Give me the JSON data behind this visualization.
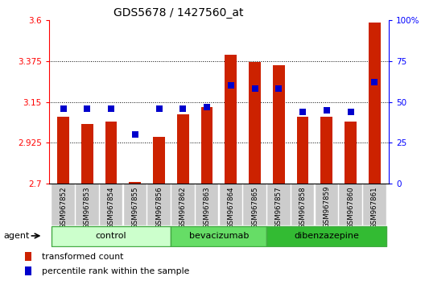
{
  "title": "GDS5678 / 1427560_at",
  "samples": [
    "GSM967852",
    "GSM967853",
    "GSM967854",
    "GSM967855",
    "GSM967856",
    "GSM967862",
    "GSM967863",
    "GSM967864",
    "GSM967865",
    "GSM967857",
    "GSM967858",
    "GSM967859",
    "GSM967860",
    "GSM967861"
  ],
  "bar_values": [
    3.07,
    3.03,
    3.04,
    2.71,
    2.96,
    3.08,
    3.12,
    3.41,
    3.37,
    3.35,
    3.07,
    3.07,
    3.04,
    3.585
  ],
  "dot_values_pct": [
    46,
    46,
    46,
    30,
    46,
    46,
    47,
    60,
    58,
    58,
    44,
    45,
    44,
    62
  ],
  "ylim_left": [
    2.7,
    3.6
  ],
  "ylim_right": [
    0,
    100
  ],
  "yticks_left": [
    2.7,
    2.925,
    3.15,
    3.375,
    3.6
  ],
  "yticks_right": [
    0,
    25,
    50,
    75,
    100
  ],
  "ytick_labels_left": [
    "2.7",
    "2.925",
    "3.15",
    "3.375",
    "3.6"
  ],
  "ytick_labels_right": [
    "0",
    "25",
    "50",
    "75",
    "100%"
  ],
  "groups": [
    {
      "name": "control",
      "color": "#ccffcc",
      "edge": "#44aa44",
      "indices": [
        0,
        1,
        2,
        3,
        4
      ]
    },
    {
      "name": "bevacizumab",
      "color": "#66dd66",
      "edge": "#44aa44",
      "indices": [
        5,
        6,
        7,
        8
      ]
    },
    {
      "name": "dibenzazepine",
      "color": "#33bb33",
      "edge": "#44aa44",
      "indices": [
        9,
        10,
        11,
        12,
        13
      ]
    }
  ],
  "bar_color": "#cc2200",
  "dot_color": "#0000cc",
  "bar_width": 0.5,
  "agent_label": "agent",
  "legend": [
    {
      "label": "transformed count",
      "color": "#cc2200"
    },
    {
      "label": "percentile rank within the sample",
      "color": "#0000cc"
    }
  ],
  "grid_color": "black",
  "xtick_bg_color": "#cccccc",
  "dot_size": 38
}
